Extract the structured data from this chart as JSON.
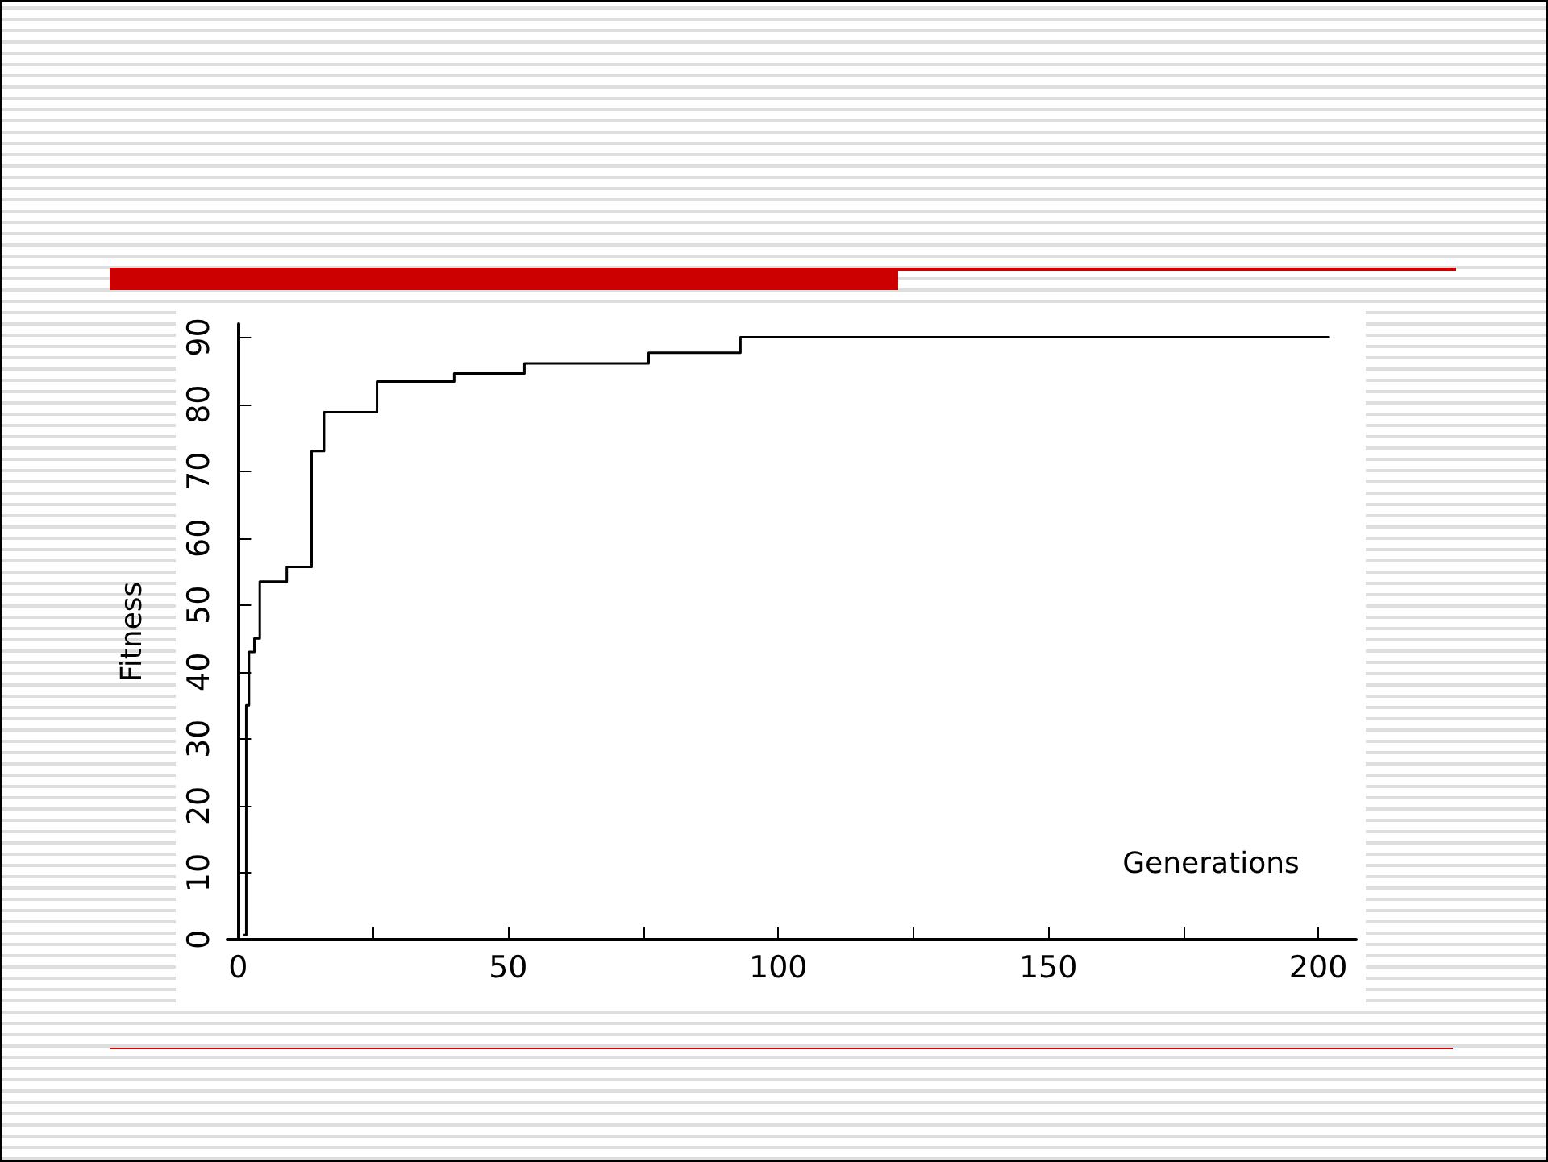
{
  "chart_data": {
    "type": "step",
    "xlabel": "Generations",
    "ylabel": "Fitness",
    "x": [
      1,
      1.5,
      2,
      3,
      4,
      8,
      9,
      13,
      13.6,
      15.9,
      24.8,
      25.7,
      39,
      40,
      52,
      53,
      75,
      76,
      92,
      93,
      202
    ],
    "series": [
      {
        "color": "#000000",
        "values": [
          0.7,
          35,
          43,
          45,
          53.5,
          53.5,
          55.7,
          55.7,
          73,
          78.8,
          78.8,
          83.4,
          83.4,
          84.6,
          84.6,
          86.1,
          86.1,
          87.7,
          87.7,
          90,
          90
        ]
      }
    ],
    "xlim": [
      -2,
      207
    ],
    "ylim": [
      0,
      92
    ],
    "xticks": [
      0,
      {
        "value": 25,
        "label": null
      },
      50,
      {
        "value": 75,
        "label": null
      },
      100,
      {
        "value": 125,
        "label": null
      },
      150,
      {
        "value": 175,
        "label": null
      },
      200
    ],
    "yticks": [
      0,
      10,
      20,
      30,
      40,
      50,
      60,
      70,
      80,
      90
    ],
    "grid": false,
    "marker": "none",
    "line_style": "solid"
  }
}
